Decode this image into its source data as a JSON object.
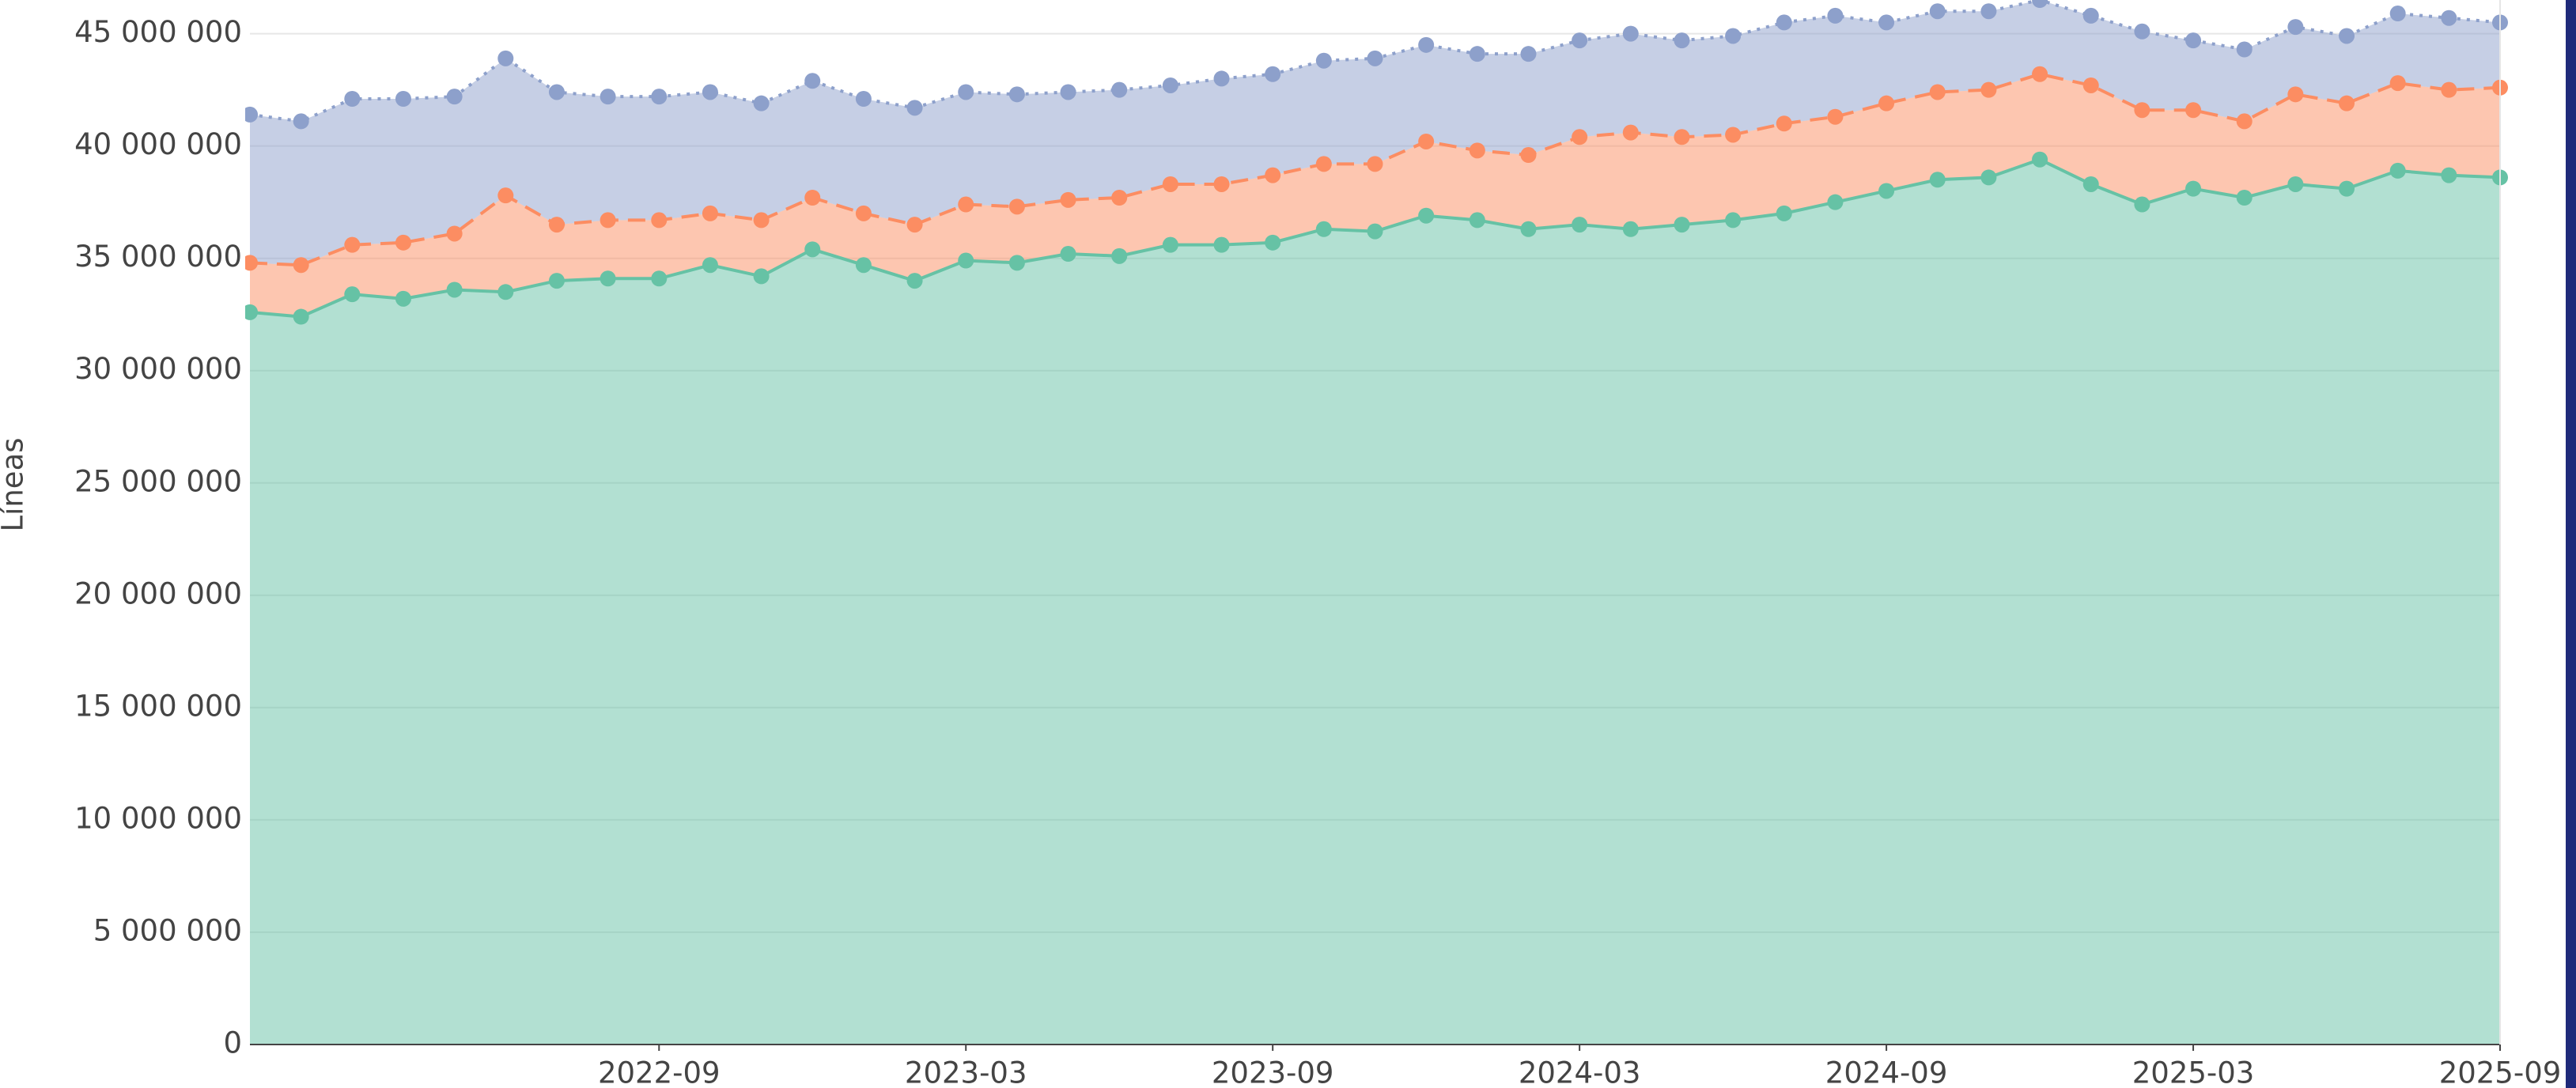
{
  "chart_data": {
    "type": "stacked_area",
    "y_label": "Líneas",
    "x": [
      "2022-01",
      "2022-02",
      "2022-03",
      "2022-04",
      "2022-05",
      "2022-06",
      "2022-07",
      "2022-08",
      "2022-09",
      "2022-10",
      "2022-11",
      "2022-12",
      "2023-01",
      "2023-02",
      "2023-03",
      "2023-04",
      "2023-05",
      "2023-06",
      "2023-07",
      "2023-08",
      "2023-09",
      "2023-10",
      "2023-11",
      "2023-12",
      "2024-01",
      "2024-02",
      "2024-03",
      "2024-04",
      "2024-05",
      "2024-06",
      "2024-07",
      "2024-08",
      "2024-09",
      "2024-10",
      "2024-11",
      "2024-12",
      "2025-01",
      "2025-02",
      "2025-03",
      "2025-04",
      "2025-05",
      "2025-06",
      "2025-07",
      "2025-08",
      "2025-09"
    ],
    "series": [
      {
        "color": "#66c2a5",
        "line_style": "solid",
        "values": [
          32600000,
          32400000,
          33400000,
          33200000,
          33600000,
          33500000,
          34000000,
          34100000,
          34100000,
          34700000,
          34200000,
          35400000,
          34700000,
          34000000,
          34900000,
          34800000,
          35200000,
          35100000,
          35600000,
          35600000,
          35700000,
          36300000,
          36200000,
          36900000,
          36700000,
          36300000,
          36500000,
          36300000,
          36500000,
          36700000,
          37000000,
          37500000,
          38000000,
          38500000,
          38600000,
          39400000,
          38300000,
          37400000,
          38100000,
          37700000,
          38300000,
          38100000,
          38900000,
          38700000,
          38600000
        ]
      },
      {
        "color": "#fc8d62",
        "line_style": "dashed",
        "values": [
          2200000,
          2300000,
          2200000,
          2500000,
          2500000,
          4300000,
          2500000,
          2600000,
          2600000,
          2300000,
          2500000,
          2300000,
          2300000,
          2500000,
          2500000,
          2500000,
          2400000,
          2600000,
          2700000,
          2700000,
          3000000,
          2900000,
          3000000,
          3300000,
          3100000,
          3300000,
          3900000,
          4300000,
          3900000,
          3800000,
          4000000,
          3800000,
          3900000,
          3900000,
          3900000,
          3800000,
          4400000,
          4200000,
          3500000,
          3400000,
          4000000,
          3800000,
          3900000,
          3800000,
          4000000
        ]
      },
      {
        "color": "#8da0cb",
        "line_style": "dotted",
        "values": [
          6600000,
          6400000,
          6500000,
          6400000,
          6100000,
          6100000,
          5900000,
          5500000,
          5500000,
          5400000,
          5200000,
          5200000,
          5100000,
          5200000,
          5000000,
          5000000,
          4800000,
          4800000,
          4400000,
          4700000,
          4500000,
          4600000,
          4700000,
          4300000,
          4300000,
          4500000,
          4300000,
          4400000,
          4300000,
          4400000,
          4500000,
          4500000,
          3600000,
          3600000,
          3500000,
          3300000,
          3100000,
          3500000,
          3100000,
          3200000,
          3000000,
          3000000,
          3100000,
          3200000,
          2900000
        ]
      }
    ],
    "xlim": [
      "2022-01",
      "2025-09"
    ],
    "xticks": [
      "2022-09",
      "2023-03",
      "2023-09",
      "2024-03",
      "2024-09",
      "2025-03",
      "2025-09"
    ],
    "ylim": [
      0,
      46500000
    ],
    "yticks": [
      0,
      {
        "value": 5000000,
        "label": "5 000 000"
      },
      {
        "value": 10000000,
        "label": "10 000 000"
      },
      {
        "value": 15000000,
        "label": "15 000 000"
      },
      {
        "value": 20000000,
        "label": "20 000 000"
      },
      {
        "value": 25000000,
        "label": "25 000 000"
      },
      {
        "value": 30000000,
        "label": "30 000 000"
      },
      {
        "value": 35000000,
        "label": "35 000 000"
      },
      {
        "value": 40000000,
        "label": "40 000 000"
      },
      {
        "value": 45000000,
        "label": "45 000 000"
      }
    ],
    "grid": true
  }
}
